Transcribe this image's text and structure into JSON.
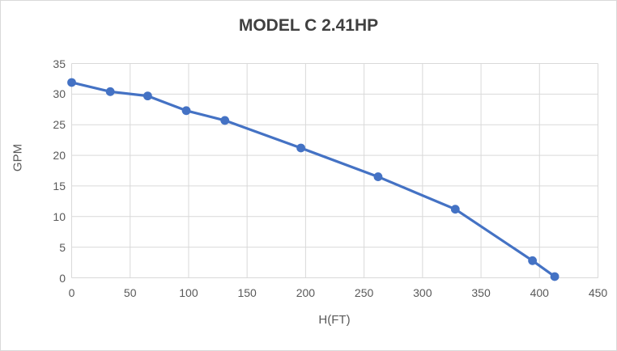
{
  "chart_data": {
    "type": "line",
    "title": "MODEL C 2.41HP",
    "xlabel": "H(FT)",
    "ylabel": "GPM",
    "x": [
      0,
      33,
      65,
      98,
      131,
      196,
      262,
      328,
      394,
      413
    ],
    "y": [
      31.9,
      30.4,
      29.7,
      27.3,
      25.7,
      21.2,
      16.5,
      11.2,
      2.8,
      0.2
    ],
    "xlim": [
      0,
      450
    ],
    "ylim": [
      0,
      35
    ],
    "x_ticks": [
      0,
      50,
      100,
      150,
      200,
      250,
      300,
      350,
      400,
      450
    ],
    "y_ticks": [
      0,
      5,
      10,
      15,
      20,
      25,
      30,
      35
    ],
    "grid": true,
    "legend": "none",
    "marker": "circle",
    "series_color": "#4472C4",
    "gridline_color": "#d9d9d9",
    "tick_color": "#595959",
    "title_color": "#404040",
    "background_color": "#ffffff"
  }
}
